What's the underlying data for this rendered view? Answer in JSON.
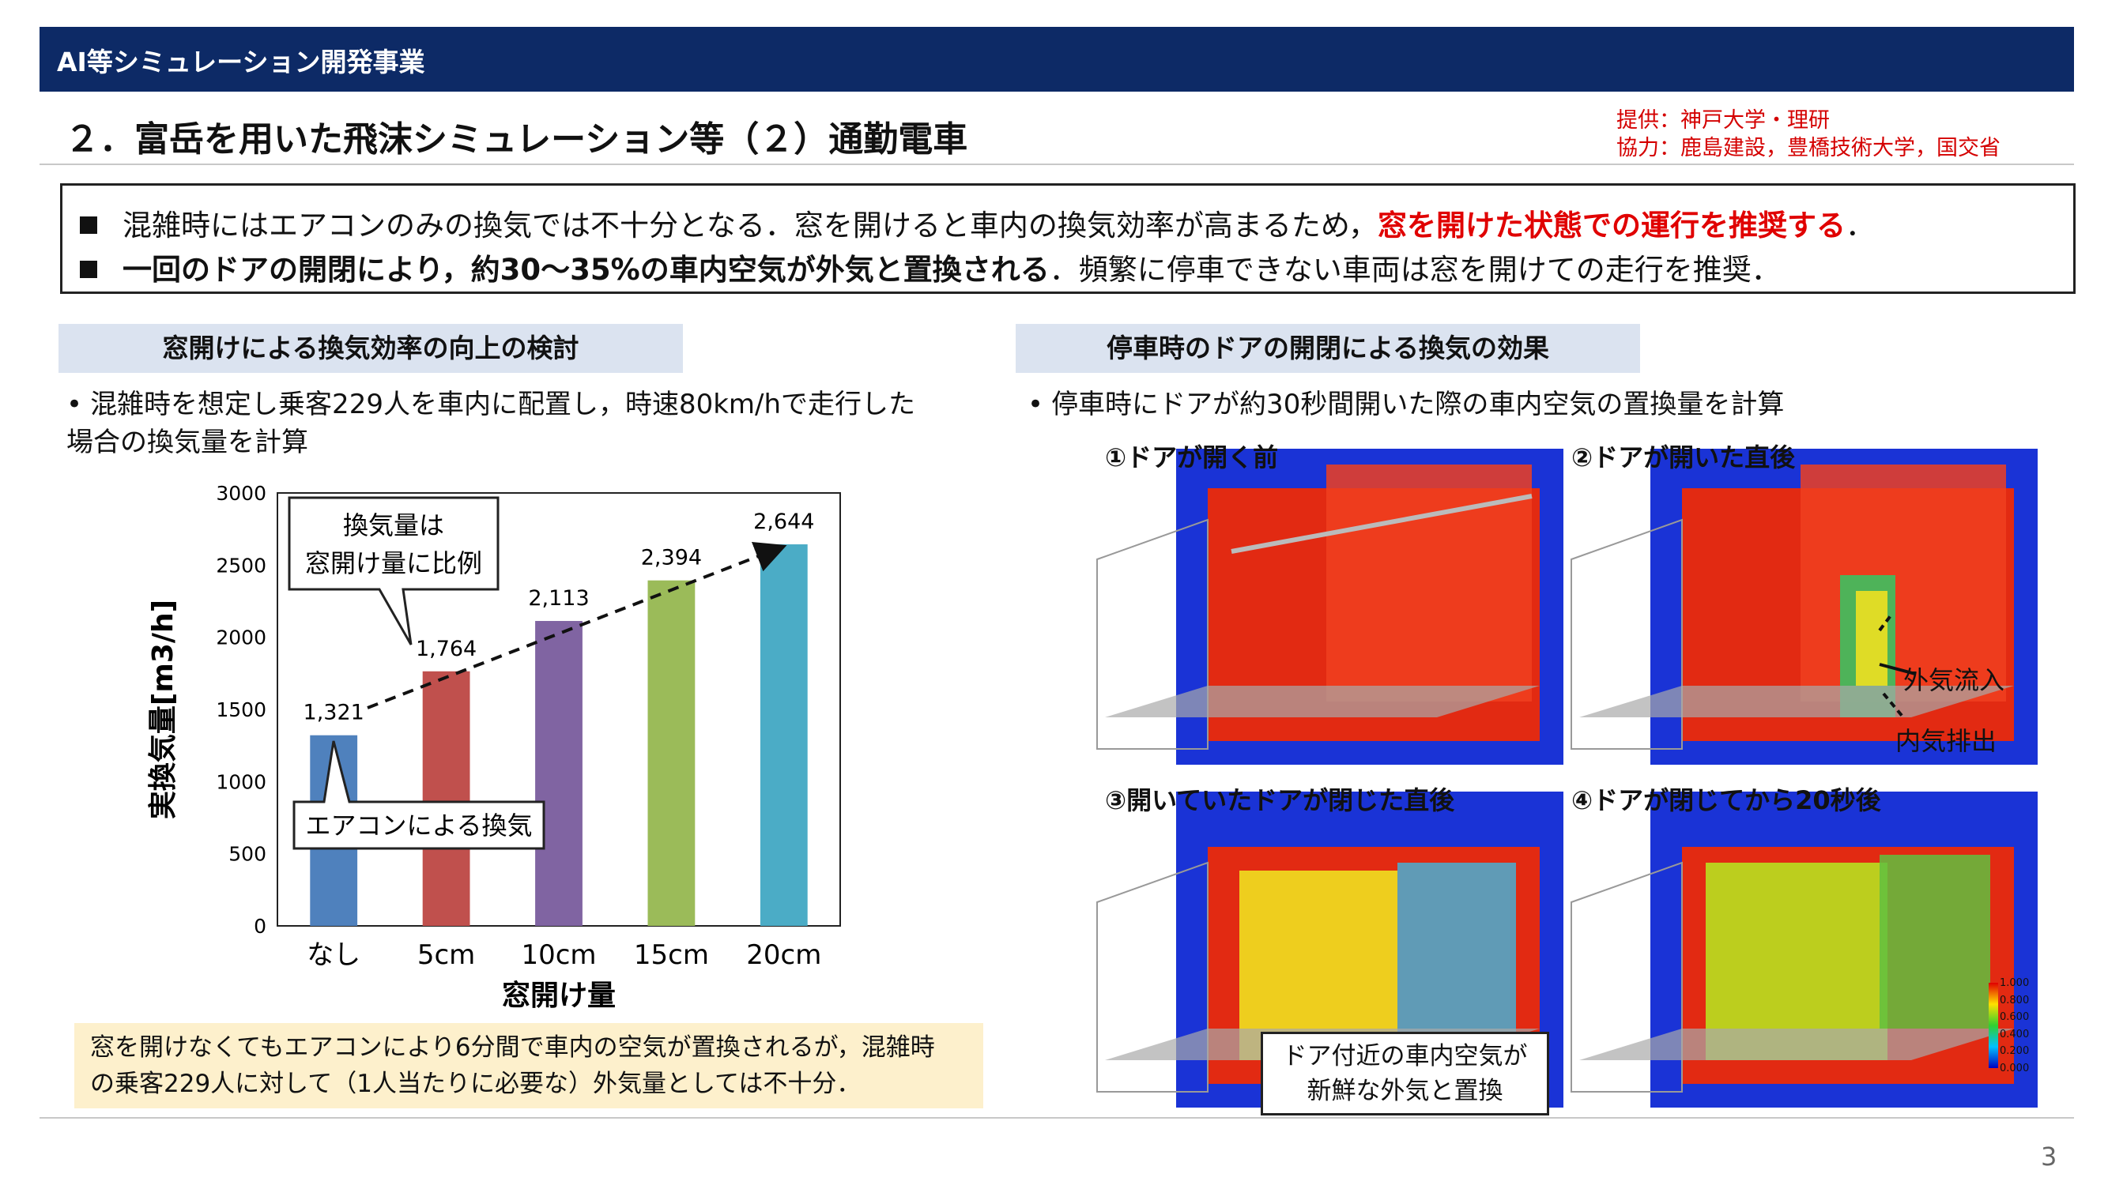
{
  "header": {
    "label": "AI等シミュレーション開発事業"
  },
  "title": "２．富岳を用いた飛沫シミュレーション等（２）通勤電車",
  "credits": {
    "line1": "提供：神戸大学・理研",
    "line2": "協力：鹿島建設，豊橋技術大学，国交省"
  },
  "summary": {
    "line1_a": "混雑時にはエアコンのみの換気では不十分となる．窓を開けると車内の換気効率が高まるため，",
    "line1_b": "窓を開けた状態での運行を推奨する",
    "line1_c": "．",
    "line2_a": "一回のドアの開閉により，約30～35%の車内空気が外気と置換される",
    "line2_b": "．頻繁に停車できない車両は窓を開けての走行を推奨．"
  },
  "left_section": {
    "heading": "窓開けによる換気効率の向上の検討",
    "bullet": "•",
    "text_line1": "混雑時を想定し乗客229人を車内に配置し，時速80km/hで走行した",
    "text_line2": "場合の換気量を計算"
  },
  "right_section": {
    "heading": "停車時のドアの開閉による換気の効果",
    "bullet": "•",
    "text": "停車時にドアが約30秒間開いた際の車内空気の置換量を計算"
  },
  "chart_data": {
    "type": "bar",
    "categories": [
      "なし",
      "5cm",
      "10cm",
      "15cm",
      "20cm"
    ],
    "values": [
      1321,
      1764,
      2113,
      2394,
      2644
    ],
    "value_labels": [
      "1,321",
      "1,764",
      "2,113",
      "2,394",
      "2,644"
    ],
    "colors": [
      "#4f81bd",
      "#c0504d",
      "#8064a2",
      "#9bbb59",
      "#4bacc6"
    ],
    "xlabel": "窓開け量",
    "ylabel": "実換気量[m3/h]",
    "ylim": [
      0,
      3000
    ],
    "yticks": [
      0,
      500,
      1000,
      1500,
      2000,
      2500,
      3000
    ],
    "grid": false,
    "annotations": {
      "trend": "換気量は\n窓開け量に比例",
      "ac": "エアコンによる換気"
    }
  },
  "note": {
    "line1": "窓を開けなくてもエアコンにより6分間で車内の空気が置換されるが，混雑時",
    "line2": "の乗客229人に対して（1人当たりに必要な）外気量としては不十分．"
  },
  "simulations": [
    {
      "label": "①ドアが開く前"
    },
    {
      "label": "②ドアが開いた直後",
      "annotation_in": "外気流入",
      "annotation_out": "内気排出"
    },
    {
      "label": "③開いていたドアが閉じた直後"
    },
    {
      "label": "④ドアが閉じてから20秒後"
    }
  ],
  "colorbar": [
    "1.000",
    "0.800",
    "0.600",
    "0.400",
    "0.200",
    "0.000"
  ],
  "callout": {
    "line1": "ドア付近の車内空気が",
    "line2": "新鮮な外気と置換"
  },
  "page_number": "3"
}
